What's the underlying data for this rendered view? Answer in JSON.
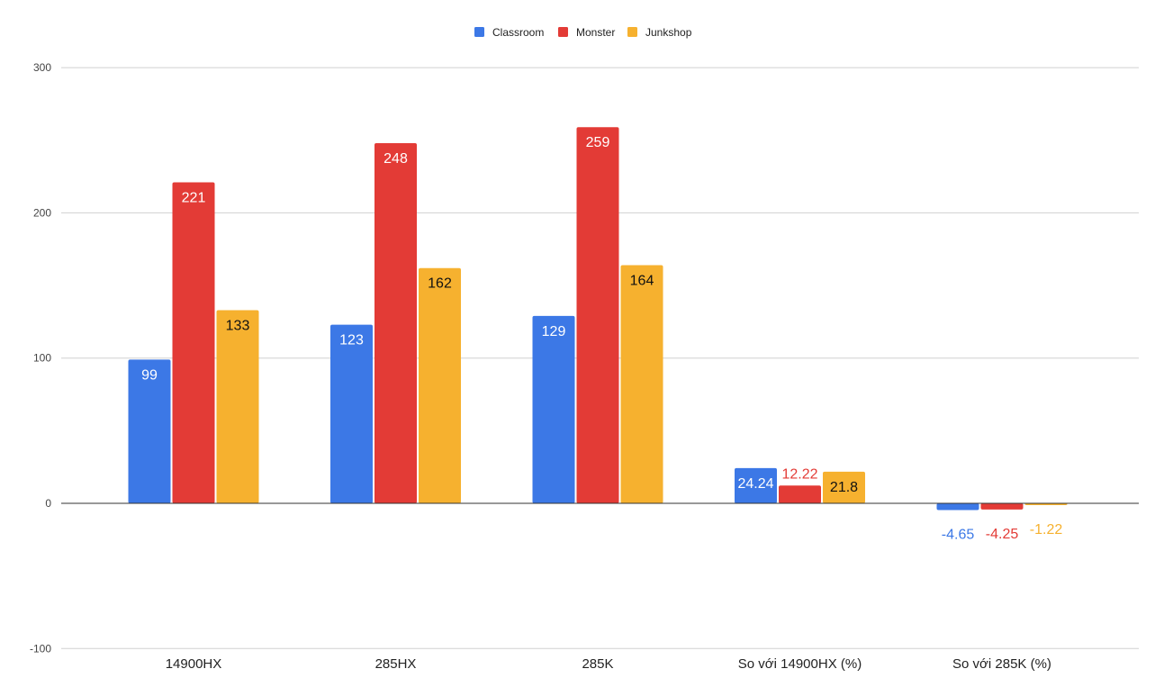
{
  "chart_data": {
    "type": "bar",
    "title": "",
    "xlabel": "",
    "ylabel": "",
    "ylim": [
      -100,
      300
    ],
    "yticks": [
      -100,
      0,
      100,
      200,
      300
    ],
    "grid": true,
    "legend_position": "top",
    "categories": [
      "14900HX",
      "285HX",
      "285K",
      "So với 14900HX (%)",
      "So với 285K (%)"
    ],
    "series": [
      {
        "name": "Classroom",
        "color": "#3c78e6",
        "values": [
          99,
          123,
          129,
          24.24,
          -4.65
        ]
      },
      {
        "name": "Monster",
        "color": "#e33b36",
        "values": [
          221,
          248,
          259,
          12.22,
          -4.25
        ]
      },
      {
        "name": "Junkshop",
        "color": "#f6b12f",
        "values": [
          133,
          162,
          164,
          21.8,
          -1.22
        ]
      }
    ]
  }
}
